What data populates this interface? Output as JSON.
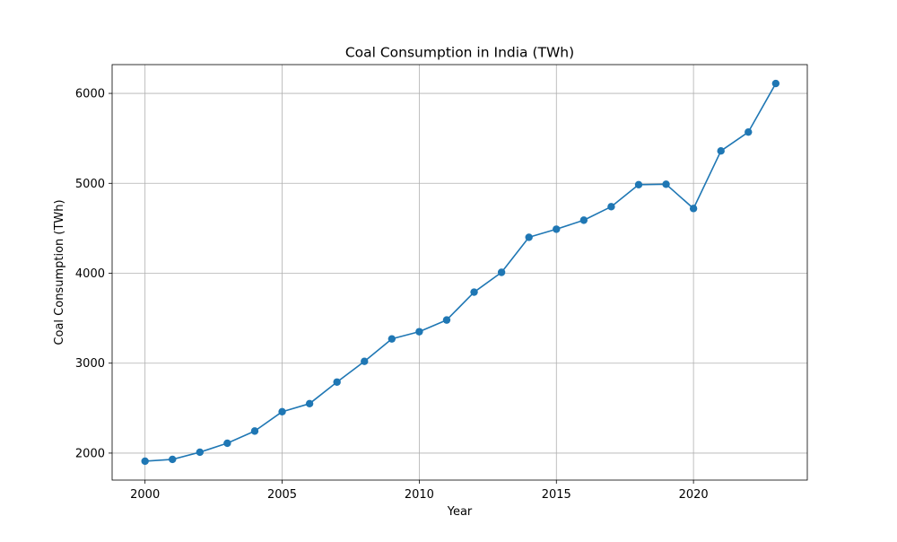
{
  "chart_data": {
    "type": "line",
    "title": "Coal Consumption in India (TWh)",
    "xlabel": "Year",
    "ylabel": "Coal Consumption (TWh)",
    "x": [
      2000,
      2001,
      2002,
      2003,
      2004,
      2005,
      2006,
      2007,
      2008,
      2009,
      2010,
      2011,
      2012,
      2013,
      2014,
      2015,
      2016,
      2017,
      2018,
      2019,
      2020,
      2021,
      2022,
      2023
    ],
    "series": [
      {
        "values": [
          1910,
          1930,
          2010,
          2110,
          2245,
          2460,
          2550,
          2790,
          3020,
          3270,
          3350,
          3480,
          3790,
          4010,
          4400,
          4490,
          4590,
          4740,
          4985,
          4990,
          4720,
          5360,
          5570,
          6110
        ],
        "color": "#1f77b4",
        "marker": "circle"
      }
    ],
    "xlim": [
      1998.8,
      2024.15
    ],
    "ylim": [
      1700,
      6320
    ],
    "xticks": [
      "2000",
      "2005",
      "2010",
      "2015",
      "2020"
    ],
    "yticks": [
      "2000",
      "3000",
      "4000",
      "5000",
      "6000"
    ],
    "grid": true,
    "legend": "none"
  }
}
